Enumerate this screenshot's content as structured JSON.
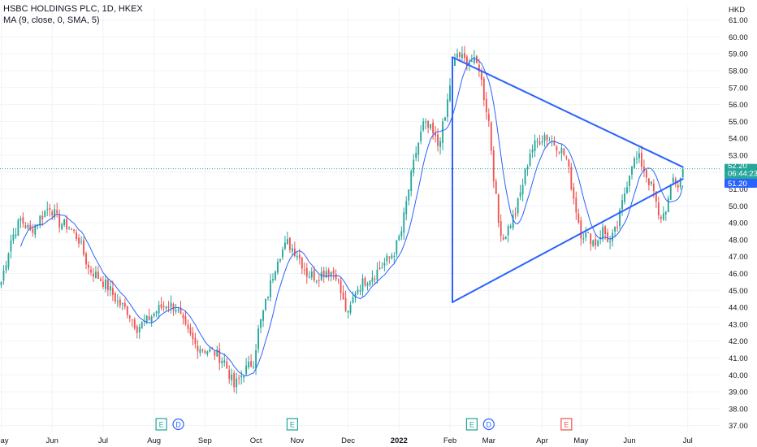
{
  "header": {
    "title": "HSBC HOLDINGS PLC, 1D, HKEX",
    "indicator": "MA (9, close, 0, SMA, 5)"
  },
  "price_axis": {
    "currency": "HKD",
    "last_price_label": "52.20",
    "countdown_label": "06:44:23",
    "ma_label": "51.20"
  },
  "colors": {
    "up": "#26a69a",
    "down": "#ef5350",
    "ma_line": "#2962ff",
    "drawing": "#2962ff",
    "last_price_bg": "#26a69a",
    "ma_badge_bg": "#2962ff",
    "grid": "#f0f3fa",
    "earnings_icon": "#26a69a",
    "dividend_icon": "#2962ff",
    "earnings_future_icon": "#ef5350"
  },
  "event_icons": [
    {
      "type": "earnings",
      "letter": "E",
      "date_index": 66
    },
    {
      "type": "dividend",
      "letter": "D",
      "date_index": 73
    },
    {
      "type": "earnings",
      "letter": "E",
      "date_index": 120
    },
    {
      "type": "earnings",
      "letter": "E",
      "date_index": 194
    },
    {
      "type": "dividend",
      "letter": "D",
      "date_index": 201
    },
    {
      "type": "earnings",
      "letter": "E",
      "date_index": 233
    }
  ],
  "chart_data": {
    "type": "candlestick",
    "title": "HSBC HOLDINGS PLC, 1D, HKEX",
    "ylabel": "HKD",
    "ylim": [
      36.6,
      61.8
    ],
    "y_ticks": [
      37.0,
      38.0,
      39.0,
      40.0,
      41.0,
      42.0,
      43.0,
      44.0,
      45.0,
      46.0,
      47.0,
      48.0,
      49.0,
      50.0,
      51.0,
      52.0,
      53.0,
      54.0,
      55.0,
      56.0,
      57.0,
      58.0,
      59.0,
      60.0,
      61.0
    ],
    "x_ticks": [
      {
        "label": "May",
        "index": 0
      },
      {
        "label": "Jun",
        "index": 21
      },
      {
        "label": "Jul",
        "index": 42
      },
      {
        "label": "Aug",
        "index": 63
      },
      {
        "label": "Sep",
        "index": 84
      },
      {
        "label": "Oct",
        "index": 105
      },
      {
        "label": "Nov",
        "index": 122
      },
      {
        "label": "Dec",
        "index": 143
      },
      {
        "label": "2022",
        "index": 164,
        "bold": true
      },
      {
        "label": "Feb",
        "index": 185
      },
      {
        "label": "Mar",
        "index": 201
      },
      {
        "label": "Apr",
        "index": 223
      },
      {
        "label": "May",
        "index": 239
      },
      {
        "label": "Jun",
        "index": 259
      },
      {
        "label": "Jul",
        "index": 283
      }
    ],
    "x_count": 297,
    "anchors": [
      [
        0,
        45.5
      ],
      [
        4,
        48.0
      ],
      [
        8,
        49.2
      ],
      [
        12,
        48.5
      ],
      [
        16,
        49.3
      ],
      [
        20,
        50.0
      ],
      [
        24,
        49.0
      ],
      [
        28,
        48.8
      ],
      [
        32,
        48.0
      ],
      [
        36,
        46.3
      ],
      [
        40,
        45.8
      ],
      [
        44,
        45.2
      ],
      [
        48,
        44.3
      ],
      [
        52,
        43.8
      ],
      [
        56,
        42.8
      ],
      [
        60,
        43.2
      ],
      [
        64,
        43.8
      ],
      [
        68,
        44.2
      ],
      [
        72,
        44.0
      ],
      [
        76,
        42.7
      ],
      [
        80,
        41.8
      ],
      [
        84,
        41.5
      ],
      [
        88,
        41.3
      ],
      [
        92,
        40.8
      ],
      [
        96,
        39.3
      ],
      [
        100,
        40.2
      ],
      [
        104,
        40.8
      ],
      [
        106,
        42.6
      ],
      [
        110,
        44.8
      ],
      [
        114,
        47.0
      ],
      [
        118,
        47.8
      ],
      [
        122,
        47.2
      ],
      [
        126,
        46.0
      ],
      [
        130,
        45.8
      ],
      [
        134,
        46.2
      ],
      [
        138,
        46.0
      ],
      [
        141,
        44.3
      ],
      [
        143,
        43.5
      ],
      [
        146,
        45.0
      ],
      [
        150,
        45.6
      ],
      [
        154,
        46.0
      ],
      [
        158,
        46.6
      ],
      [
        162,
        47.3
      ],
      [
        165,
        48.5
      ],
      [
        168,
        51.0
      ],
      [
        171,
        53.2
      ],
      [
        174,
        54.8
      ],
      [
        177,
        54.5
      ],
      [
        180,
        53.6
      ],
      [
        183,
        55.2
      ],
      [
        186,
        58.2
      ],
      [
        188,
        59.0
      ],
      [
        191,
        58.6
      ],
      [
        194,
        58.6
      ],
      [
        197,
        58.2
      ],
      [
        199,
        56.5
      ],
      [
        201,
        55.0
      ],
      [
        203,
        51.8
      ],
      [
        205,
        49.0
      ],
      [
        207,
        48.1
      ],
      [
        209,
        48.7
      ],
      [
        212,
        49.6
      ],
      [
        215,
        51.3
      ],
      [
        218,
        53.2
      ],
      [
        221,
        53.8
      ],
      [
        224,
        54.2
      ],
      [
        227,
        53.8
      ],
      [
        230,
        53.5
      ],
      [
        233,
        52.8
      ],
      [
        236,
        50.5
      ],
      [
        239,
        48.4
      ],
      [
        242,
        48.2
      ],
      [
        245,
        47.8
      ],
      [
        248,
        48.6
      ],
      [
        251,
        47.8
      ],
      [
        254,
        48.8
      ],
      [
        257,
        50.8
      ],
      [
        260,
        52.6
      ],
      [
        263,
        52.8
      ],
      [
        266,
        51.8
      ],
      [
        269,
        50.8
      ],
      [
        271,
        49.3
      ],
      [
        273,
        49.5
      ],
      [
        275,
        50.3
      ],
      [
        277,
        51.6
      ],
      [
        279,
        51.2
      ],
      [
        281,
        52.0
      ]
    ],
    "ma_period": 9,
    "last_price": 52.2,
    "ma_last": 51.2,
    "drawings": [
      {
        "type": "trend_line",
        "from": {
          "index": 186,
          "price": 44.3
        },
        "to": {
          "index": 186,
          "price": 58.8
        }
      },
      {
        "type": "trend_line",
        "from": {
          "index": 186,
          "price": 58.8
        },
        "to": {
          "index": 281,
          "price": 52.3
        }
      },
      {
        "type": "trend_line",
        "from": {
          "index": 186,
          "price": 44.3
        },
        "to": {
          "index": 281,
          "price": 51.6
        }
      }
    ]
  }
}
